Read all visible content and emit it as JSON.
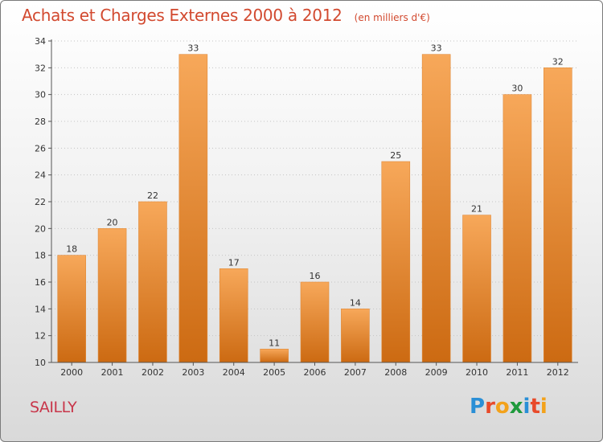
{
  "header": {
    "title": "Achats et Charges Externes 2000 à 2012",
    "unit": "(en milliers d'€)"
  },
  "place": "SAILLY",
  "logo": {
    "text": "Proxiti",
    "letters": [
      {
        "ch": "P",
        "color": "#2a8fd6"
      },
      {
        "ch": "r",
        "color": "#e84a2a"
      },
      {
        "ch": "o",
        "color": "#f3a21b"
      },
      {
        "ch": "x",
        "color": "#1f9a3c"
      },
      {
        "ch": "i",
        "color": "#2a8fd6"
      },
      {
        "ch": "t",
        "color": "#e84a2a"
      },
      {
        "ch": "i",
        "color": "#f3a21b"
      }
    ]
  },
  "colors": {
    "bar_light": "#f7a85a",
    "bar_dark": "#cc6a12",
    "title": "#d2492f",
    "place": "#c8364a"
  },
  "chart_data": {
    "type": "bar",
    "categories": [
      "2000",
      "2001",
      "2002",
      "2003",
      "2004",
      "2005",
      "2006",
      "2007",
      "2008",
      "2009",
      "2010",
      "2011",
      "2012"
    ],
    "values": [
      18,
      20,
      22,
      33,
      17,
      11,
      16,
      14,
      25,
      33,
      21,
      30,
      32
    ],
    "ylim": [
      10,
      34
    ],
    "yticks": [
      10,
      12,
      14,
      16,
      18,
      20,
      22,
      24,
      26,
      28,
      30,
      32,
      34
    ],
    "grid": true,
    "xlabel": "",
    "ylabel": ""
  }
}
